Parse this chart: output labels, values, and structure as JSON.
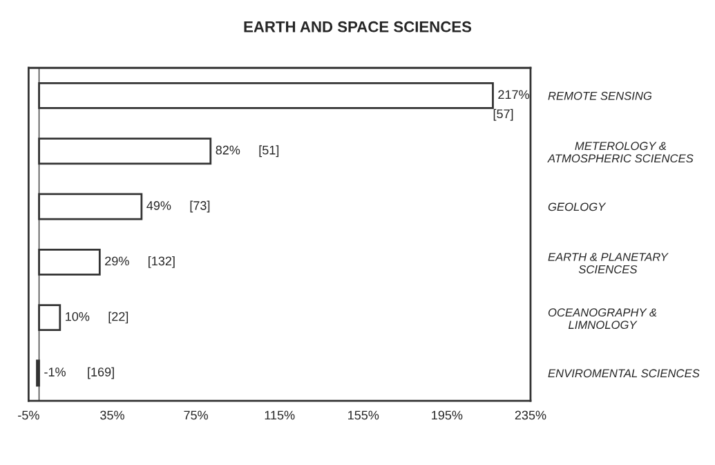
{
  "chart_data": {
    "type": "bar",
    "orientation": "horizontal",
    "title": "EARTH AND SPACE SCIENCES",
    "categories": [
      "REMOTE SENSING",
      "METEROLOGY &\nATMOSPHERIC SCIENCES",
      "GEOLOGY",
      "EARTH & PLANETARY\nSCIENCES",
      "OCEANOGRAPHY &\nLIMNOLOGY",
      "ENVIROMENTAL SCIENCES"
    ],
    "values": [
      217,
      82,
      49,
      29,
      10,
      -1
    ],
    "value_labels": [
      "217%",
      "82%",
      "49%",
      "29%",
      "10%",
      "-1%"
    ],
    "colors": [
      "#ffffff",
      "#ffffff",
      "#ffffff",
      "#ffffff",
      "#ffffff",
      "#333333"
    ],
    "xlim": [
      -5,
      235
    ],
    "xticks": [
      {
        "value": -5,
        "label": "-5%"
      },
      {
        "value": 35,
        "label": "35%"
      },
      {
        "value": 75,
        "label": "75%"
      },
      {
        "value": 115,
        "label": "115%"
      },
      {
        "value": 155,
        "label": "155%"
      },
      {
        "value": 195,
        "label": "195%"
      },
      {
        "value": 235,
        "label": "235%"
      }
    ],
    "annotations": [
      "[57]",
      "[51]",
      "[73]",
      "[132]",
      "[22]",
      "[169]"
    ],
    "grid": false
  }
}
